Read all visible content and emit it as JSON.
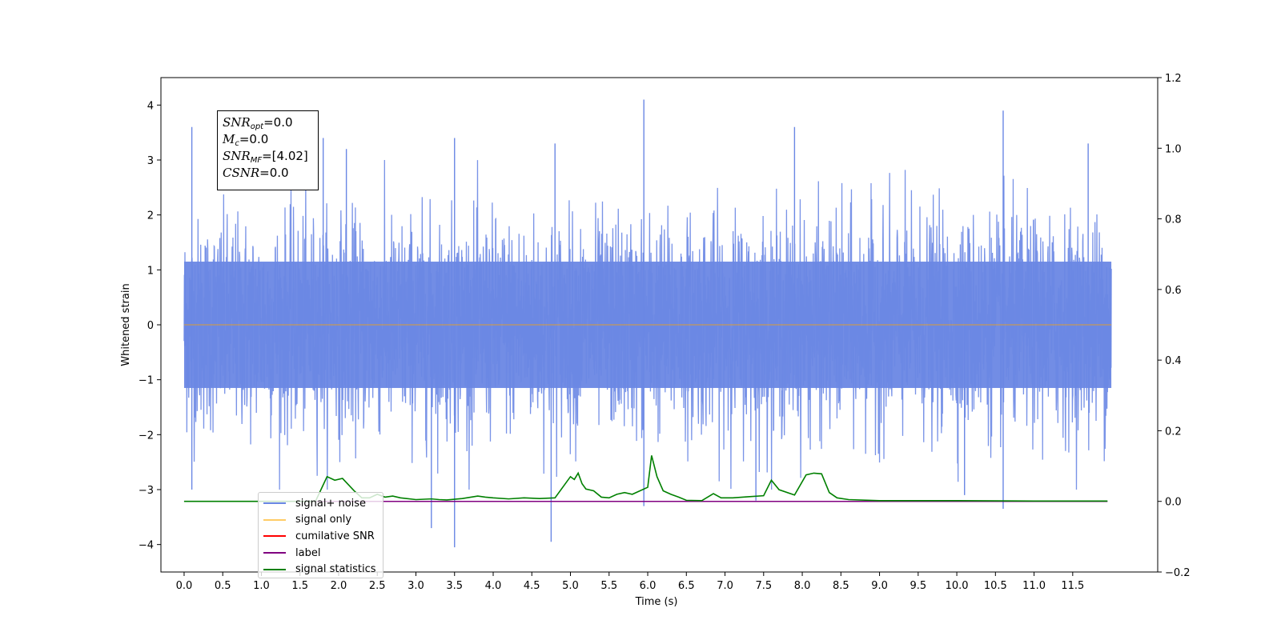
{
  "chart_data": {
    "type": "line",
    "title": "",
    "xlabel": "Time (s)",
    "ylabel": "Whitened strain",
    "y2label": "",
    "xlim": [
      -0.3,
      12.6
    ],
    "ylim": [
      -4.5,
      4.5
    ],
    "y2lim": [
      -0.2,
      1.2
    ],
    "x_ticks": [
      "0.0",
      "0.5",
      "1.0",
      "1.5",
      "2.0",
      "2.5",
      "3.0",
      "3.5",
      "4.0",
      "4.5",
      "5.0",
      "5.5",
      "6.0",
      "6.5",
      "7.0",
      "7.5",
      "8.0",
      "8.5",
      "9.0",
      "9.5",
      "10.0",
      "10.5",
      "11.0",
      "11.5"
    ],
    "y_ticks": [
      "4",
      "3",
      "2",
      "1",
      "0",
      "−1",
      "−2",
      "−3",
      "−4"
    ],
    "y2_ticks": [
      "1.2",
      "1.0",
      "0.8",
      "0.6",
      "0.4",
      "0.2",
      "0.0",
      "−0.2"
    ],
    "grid": false,
    "legend_position": "lower-left",
    "noise": {
      "x_start": 0.0,
      "x_end": 12.0,
      "amplitude_envelope": [
        -2.5,
        2.5
      ],
      "spikes": [
        {
          "x": 0.1,
          "y": 3.6
        },
        {
          "x": 1.8,
          "y": 3.4
        },
        {
          "x": 2.1,
          "y": 3.2
        },
        {
          "x": 3.5,
          "y": 3.4
        },
        {
          "x": 4.8,
          "y": 3.3
        },
        {
          "x": 5.95,
          "y": 4.1
        },
        {
          "x": 7.9,
          "y": 3.6
        },
        {
          "x": 10.6,
          "y": 3.9
        },
        {
          "x": 11.7,
          "y": 3.3
        },
        {
          "x": 0.1,
          "y": -3.0
        },
        {
          "x": 3.2,
          "y": -3.7
        },
        {
          "x": 3.5,
          "y": -4.05
        },
        {
          "x": 4.75,
          "y": -3.95
        },
        {
          "x": 5.95,
          "y": -3.3
        },
        {
          "x": 7.4,
          "y": -3.2
        },
        {
          "x": 10.6,
          "y": -3.35
        },
        {
          "x": 10.1,
          "y": -3.1
        }
      ]
    },
    "series": [
      {
        "name": "signal+ noise",
        "axis": "left",
        "color": "#6a87e4"
      },
      {
        "name": "signal only",
        "axis": "left",
        "color": "#ffa500",
        "x": [
          0.0,
          12.0
        ],
        "y": [
          0.0,
          0.0
        ]
      },
      {
        "name": "cumilative SNR",
        "axis": "right",
        "color": "#ff0000",
        "x": [],
        "y": []
      },
      {
        "name": "label",
        "axis": "right",
        "color": "#800080",
        "x": [
          0.0,
          11.95
        ],
        "y": [
          0.0,
          0.0
        ]
      },
      {
        "name": "signal statistics",
        "axis": "right",
        "color": "#008000",
        "x": [
          0.0,
          0.5,
          1.0,
          1.5,
          1.7,
          1.85,
          1.95,
          2.05,
          2.2,
          2.3,
          2.4,
          2.5,
          2.6,
          2.7,
          2.8,
          3.0,
          3.2,
          3.3,
          3.4,
          3.6,
          3.8,
          3.9,
          4.0,
          4.2,
          4.4,
          4.6,
          4.8,
          5.0,
          5.05,
          5.1,
          5.15,
          5.2,
          5.3,
          5.4,
          5.5,
          5.6,
          5.7,
          5.8,
          5.9,
          6.0,
          6.05,
          6.12,
          6.2,
          6.3,
          6.4,
          6.5,
          6.7,
          6.85,
          6.95,
          7.1,
          7.3,
          7.5,
          7.6,
          7.7,
          7.9,
          8.05,
          8.15,
          8.25,
          8.35,
          8.45,
          8.6,
          9.0,
          10.0,
          11.0,
          11.95
        ],
        "y": [
          0.0,
          0.0,
          0.0,
          0.0,
          0.0,
          0.07,
          0.06,
          0.065,
          0.03,
          0.01,
          0.01,
          0.02,
          0.012,
          0.015,
          0.01,
          0.005,
          0.007,
          0.005,
          0.004,
          0.008,
          0.015,
          0.012,
          0.01,
          0.007,
          0.01,
          0.008,
          0.01,
          0.07,
          0.062,
          0.08,
          0.05,
          0.035,
          0.03,
          0.012,
          0.01,
          0.02,
          0.025,
          0.02,
          0.03,
          0.04,
          0.13,
          0.07,
          0.03,
          0.02,
          0.012,
          0.003,
          0.002,
          0.022,
          0.01,
          0.01,
          0.013,
          0.016,
          0.06,
          0.033,
          0.018,
          0.075,
          0.08,
          0.078,
          0.025,
          0.01,
          0.005,
          0.002,
          0.002,
          0.001,
          0.001
        ]
      }
    ],
    "annotation": {
      "snr_opt_base": "SNR",
      "snr_opt_sub": "opt",
      "snr_opt_value": "=0.0",
      "mc_base": "M",
      "mc_sub": "c",
      "mc_value": "=0.0",
      "snr_mf_base": "SNR",
      "snr_mf_sub": "MF",
      "snr_mf_value": "=[4.02]",
      "csnr_base": "CSNR",
      "csnr_value": "=0.0"
    }
  }
}
